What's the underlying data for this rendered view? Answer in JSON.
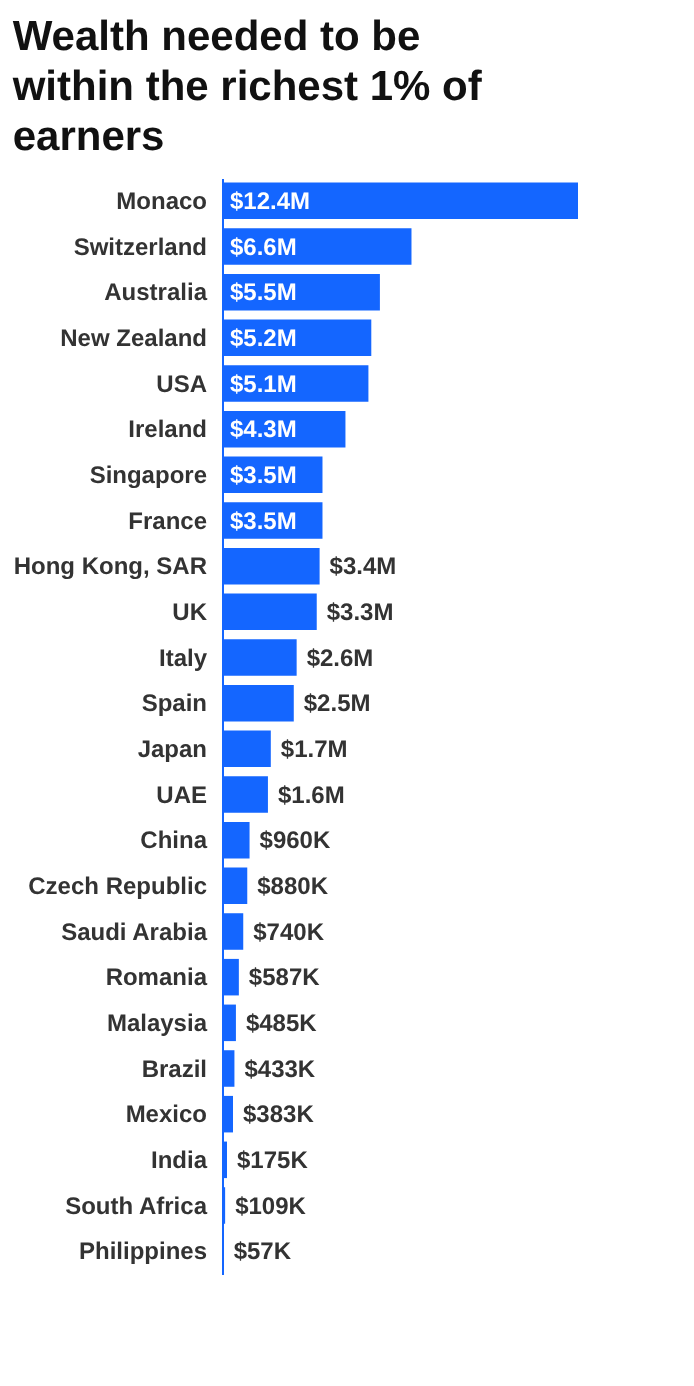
{
  "chart_data": {
    "type": "bar",
    "orientation": "horizontal",
    "title": "Wealth needed to be within the richest 1% of earners",
    "categories": [
      "Monaco",
      "Switzerland",
      "Australia",
      "New Zealand",
      "USA",
      "Ireland",
      "Singapore",
      "France",
      "Hong Kong, SAR",
      "UK",
      "Italy",
      "Spain",
      "Japan",
      "UAE",
      "China",
      "Czech Republic",
      "Saudi Arabia",
      "Romania",
      "Malaysia",
      "Brazil",
      "Mexico",
      "India",
      "South Africa",
      "Philippines"
    ],
    "values": [
      12400000,
      6600000,
      5500000,
      5200000,
      5100000,
      4300000,
      3500000,
      3500000,
      3400000,
      3300000,
      2600000,
      2500000,
      1700000,
      1600000,
      960000,
      880000,
      740000,
      587000,
      485000,
      433000,
      383000,
      175000,
      109000,
      57000
    ],
    "value_labels": [
      "$12.4M",
      "$6.6M",
      "$5.5M",
      "$5.2M",
      "$5.1M",
      "$4.3M",
      "$3.5M",
      "$3.5M",
      "$3.4M",
      "$3.3M",
      "$2.6M",
      "$2.5M",
      "$1.7M",
      "$1.6M",
      "$960K",
      "$880K",
      "$740K",
      "$587K",
      "$485K",
      "$433K",
      "$383K",
      "$175K",
      "$109K",
      "$57K"
    ],
    "color": "#1466ff",
    "grid": false
  }
}
